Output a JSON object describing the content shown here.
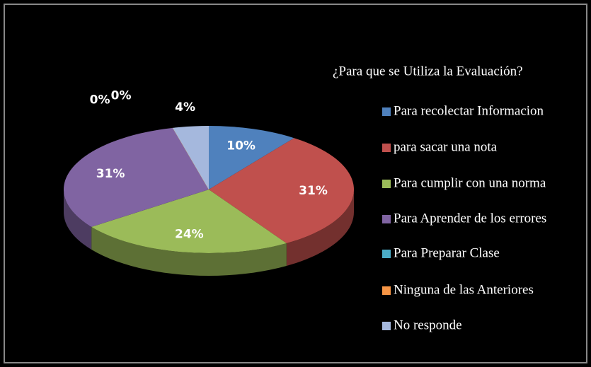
{
  "chart_data": {
    "type": "pie",
    "title": "¿Para que se Utiliza la Evaluación?",
    "categories": [
      "Para recolectar Informacion",
      "para sacar una nota",
      "Para cumplir con una norma",
      "Para Aprender de los errores",
      "Para Preparar Clase",
      "Ninguna de las Anteriores",
      "No responde"
    ],
    "values": [
      10,
      31,
      24,
      31,
      0,
      0,
      4
    ],
    "value_labels": [
      "10%",
      "31%",
      "24%",
      "31%",
      "0%",
      "0%",
      "4%"
    ],
    "colors": [
      "#4f81bd",
      "#c0504d",
      "#9bbb59",
      "#8064a2",
      "#4bacc6",
      "#f79646",
      "#a5b8dd"
    ],
    "legend": "right"
  }
}
